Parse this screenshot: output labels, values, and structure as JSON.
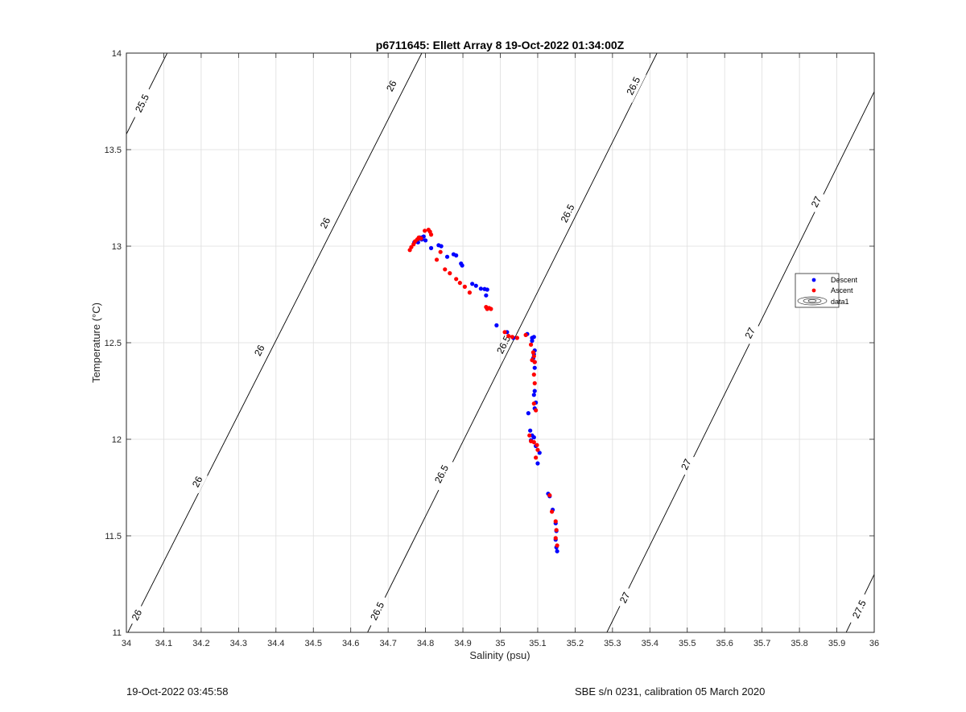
{
  "chart_data": {
    "type": "scatter",
    "title": "p6711645: Ellett Array 8 19-Oct-2022 01:34:00Z",
    "xlabel": "Salinity (psu)",
    "ylabel": "Temperature (°C)",
    "xlim": [
      34,
      36
    ],
    "ylim": [
      11,
      14
    ],
    "xticks": [
      34,
      34.1,
      34.2,
      34.3,
      34.4,
      34.5,
      34.6,
      34.7,
      34.8,
      34.9,
      35,
      35.1,
      35.2,
      35.3,
      35.4,
      35.5,
      35.6,
      35.7,
      35.8,
      35.9,
      36
    ],
    "xtick_labels": [
      "34",
      "34.1",
      "34.2",
      "34.3",
      "34.4",
      "34.5",
      "34.6",
      "34.7",
      "34.8",
      "34.9",
      "35",
      "35.1",
      "35.2",
      "35.3",
      "35.4",
      "35.5",
      "35.6",
      "35.7",
      "35.8",
      "35.9",
      "36"
    ],
    "yticks": [
      11,
      11.5,
      12,
      12.5,
      13,
      13.5,
      14
    ],
    "ytick_labels": [
      "11",
      "11.5",
      "12",
      "12.5",
      "13",
      "13.5",
      "14"
    ],
    "grid": true,
    "legend_position": "right",
    "legend": [
      "Descent",
      "Ascent",
      "data1"
    ],
    "contours": [
      {
        "level": "25.5",
        "p1": [
          34.0,
          13.58
        ],
        "p2": [
          34.109,
          14.0
        ],
        "labels": [
          [
            34.042,
            13.74
          ]
        ]
      },
      {
        "level": "26",
        "p1": [
          34.004,
          11.0
        ],
        "p2": [
          34.79,
          14.0
        ],
        "labels": [
          [
            34.028,
            11.09
          ],
          [
            34.19,
            11.78
          ],
          [
            34.356,
            12.46
          ],
          [
            34.532,
            13.12
          ],
          [
            34.709,
            13.83
          ]
        ]
      },
      {
        "level": "26.5",
        "p1": [
          34.645,
          11.0
        ],
        "p2": [
          35.419,
          14.0
        ],
        "labels": [
          [
            34.671,
            11.11
          ],
          [
            34.843,
            11.82
          ],
          [
            35.009,
            12.49
          ],
          [
            35.18,
            13.17
          ],
          [
            35.356,
            13.83
          ]
        ]
      },
      {
        "level": "27",
        "p1": [
          35.285,
          11.0
        ],
        "p2": [
          36.0,
          13.8
        ],
        "labels": [
          [
            35.333,
            11.18
          ],
          [
            35.497,
            11.87
          ],
          [
            35.668,
            12.55
          ],
          [
            35.845,
            13.23
          ]
        ]
      },
      {
        "level": "27.5",
        "p1": [
          35.925,
          11.0
        ],
        "p2": [
          36.0,
          11.3
        ],
        "labels": [
          [
            35.96,
            11.12
          ]
        ]
      }
    ],
    "series": [
      {
        "name": "Descent",
        "color": "#0000ff",
        "points": [
          [
            34.77,
            13.02
          ],
          [
            34.775,
            13.025
          ],
          [
            34.78,
            13.035
          ],
          [
            34.785,
            13.04
          ],
          [
            34.79,
            13.045
          ],
          [
            34.795,
            13.05
          ],
          [
            34.79,
            13.035
          ],
          [
            34.8,
            13.03
          ],
          [
            34.78,
            13.02
          ],
          [
            34.785,
            13.045
          ],
          [
            34.815,
            12.99
          ],
          [
            34.835,
            13.005
          ],
          [
            34.842,
            13.0
          ],
          [
            34.858,
            12.945
          ],
          [
            34.875,
            12.958
          ],
          [
            34.882,
            12.952
          ],
          [
            34.895,
            12.91
          ],
          [
            34.898,
            12.9
          ],
          [
            34.925,
            12.805
          ],
          [
            34.935,
            12.795
          ],
          [
            34.948,
            12.78
          ],
          [
            34.958,
            12.778
          ],
          [
            34.965,
            12.775
          ],
          [
            34.962,
            12.745
          ],
          [
            34.99,
            12.59
          ],
          [
            35.018,
            12.555
          ],
          [
            35.035,
            12.525
          ],
          [
            35.072,
            12.545
          ],
          [
            35.085,
            12.525
          ],
          [
            35.09,
            12.53
          ],
          [
            35.085,
            12.51
          ],
          [
            35.092,
            12.46
          ],
          [
            35.09,
            12.44
          ],
          [
            35.088,
            12.42
          ],
          [
            35.092,
            12.4
          ],
          [
            35.092,
            12.37
          ],
          [
            35.092,
            12.25
          ],
          [
            35.09,
            12.23
          ],
          [
            35.095,
            12.19
          ],
          [
            35.092,
            12.16
          ],
          [
            35.075,
            12.135
          ],
          [
            35.08,
            12.045
          ],
          [
            35.085,
            12.02
          ],
          [
            35.09,
            12.01
          ],
          [
            35.082,
            11.995
          ],
          [
            35.095,
            11.965
          ],
          [
            35.105,
            11.93
          ],
          [
            35.1,
            11.875
          ],
          [
            35.128,
            11.718
          ],
          [
            35.132,
            11.705
          ],
          [
            35.14,
            11.635
          ],
          [
            35.148,
            11.565
          ],
          [
            35.15,
            11.525
          ],
          [
            35.148,
            11.48
          ],
          [
            35.15,
            11.44
          ],
          [
            35.152,
            11.42
          ]
        ]
      },
      {
        "name": "Ascent",
        "color": "#ff0000",
        "points": [
          [
            34.758,
            12.98
          ],
          [
            34.762,
            12.995
          ],
          [
            34.768,
            13.01
          ],
          [
            34.772,
            13.025
          ],
          [
            34.778,
            13.035
          ],
          [
            34.782,
            13.045
          ],
          [
            34.788,
            13.04
          ],
          [
            34.798,
            13.08
          ],
          [
            34.808,
            13.085
          ],
          [
            34.812,
            13.075
          ],
          [
            34.815,
            13.06
          ],
          [
            34.83,
            12.93
          ],
          [
            34.84,
            12.97
          ],
          [
            34.852,
            12.88
          ],
          [
            34.865,
            12.86
          ],
          [
            34.882,
            12.83
          ],
          [
            34.892,
            12.81
          ],
          [
            34.905,
            12.79
          ],
          [
            34.918,
            12.76
          ],
          [
            34.962,
            12.685
          ],
          [
            34.965,
            12.675
          ],
          [
            34.97,
            12.68
          ],
          [
            34.975,
            12.675
          ],
          [
            35.012,
            12.555
          ],
          [
            35.022,
            12.535
          ],
          [
            35.032,
            12.53
          ],
          [
            35.045,
            12.525
          ],
          [
            35.068,
            12.54
          ],
          [
            35.082,
            12.49
          ],
          [
            35.088,
            12.45
          ],
          [
            35.09,
            12.43
          ],
          [
            35.085,
            12.41
          ],
          [
            35.092,
            12.4
          ],
          [
            35.09,
            12.335
          ],
          [
            35.092,
            12.29
          ],
          [
            35.09,
            12.185
          ],
          [
            35.095,
            12.15
          ],
          [
            35.078,
            12.02
          ],
          [
            35.082,
            11.99
          ],
          [
            35.09,
            11.985
          ],
          [
            35.098,
            11.97
          ],
          [
            35.1,
            11.945
          ],
          [
            35.095,
            11.905
          ],
          [
            35.132,
            11.71
          ],
          [
            35.138,
            11.625
          ],
          [
            35.148,
            11.575
          ],
          [
            35.15,
            11.53
          ],
          [
            35.148,
            11.488
          ],
          [
            35.152,
            11.45
          ]
        ]
      }
    ],
    "colors": {
      "descent": "#0000ff",
      "ascent": "#ff0000",
      "contour": "#000000",
      "grid": "#dedede"
    }
  },
  "footer": {
    "left": "19-Oct-2022 03:45:58",
    "right": "SBE s/n 0231, calibration 05 March 2020"
  }
}
